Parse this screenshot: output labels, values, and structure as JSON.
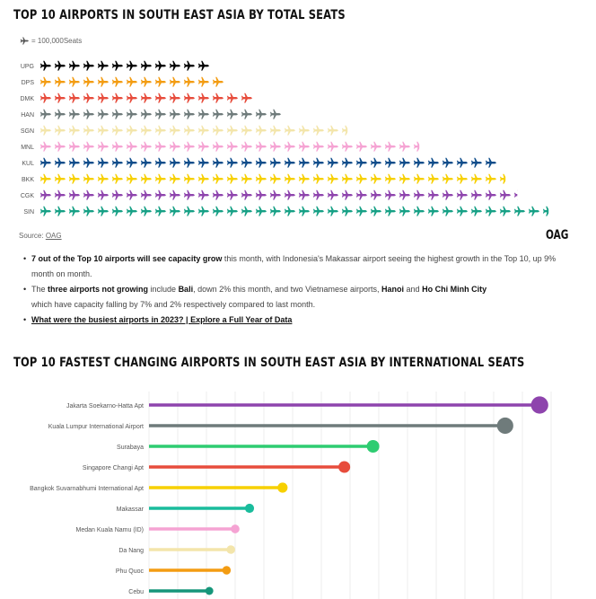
{
  "chart_data": [
    {
      "type": "pictogram",
      "title": "TOP 10 AIRPORTS IN SOUTH EAST ASIA BY TOTAL SEATS",
      "legend": "= 100,000Seats",
      "icon": "airplane-icon",
      "unit_seats": 100000,
      "categories": [
        "UPG",
        "DPS",
        "DMK",
        "HAN",
        "SGN",
        "MNL",
        "KUL",
        "BKK",
        "CGK",
        "SIN"
      ],
      "values": [
        12,
        13,
        15,
        17,
        21.5,
        26.5,
        32,
        32.5,
        33.3,
        35.5
      ],
      "colors": [
        "#000000",
        "#f39c12",
        "#e74c3c",
        "#6f7b7b",
        "#f3e5ab",
        "#f5a3d3",
        "#0e4c8a",
        "#f7d000",
        "#8e44ad",
        "#16a085"
      ]
    },
    {
      "type": "lollipop",
      "title": "TOP 10 FASTEST CHANGING AIRPORTS IN SOUTH EAST ASIA BY INTERNATIONAL SEATS",
      "categories": [
        "Jakarta Soekarno-Hatta Apt",
        "Kuala Lumpur International Airport",
        "Surabaya",
        "Singapore Changi Apt",
        "Bangkok Suvarnabhumi International Apt",
        "Makassar",
        "Medan Kuala Namu (ID)",
        "Da Nang",
        "Phu Quoc",
        "Cebu"
      ],
      "values": [
        13.6,
        12.4,
        7.8,
        6.8,
        4.65,
        3.5,
        3.0,
        2.85,
        2.7,
        2.1
      ],
      "xlim": [
        0,
        14
      ],
      "grid": true,
      "colors": [
        "#8e44ad",
        "#6f7b7b",
        "#2ecc71",
        "#e74c3c",
        "#f7d000",
        "#1abc9c",
        "#f5a3d3",
        "#f3e5ab",
        "#f39c12",
        "#16967a"
      ]
    }
  ],
  "source": {
    "label": "Source:",
    "link": "OAG"
  },
  "logo": "OAG",
  "bullets": [
    {
      "bold": "7 out of the Top 10 airports will see capacity grow",
      "text": " this month, with Indonesia's Makassar airport seeing the highest growth in the Top 10, up 9% month on month."
    },
    {
      "pre": "The ",
      "bold": "three airports not growing",
      "mid": " include ",
      "b2": "Bali",
      "mid2": ", down 2% this month, and two Vietnamese airports, ",
      "b3": "Hanoi",
      "mid3": " and ",
      "b4": "Ho Chi Minh City",
      "post": "which have capacity falling by 7% and 2% respectively compared to last month."
    },
    {
      "link": "What were the busiest airports in 2023? | Explore a Full Year of Data"
    }
  ]
}
